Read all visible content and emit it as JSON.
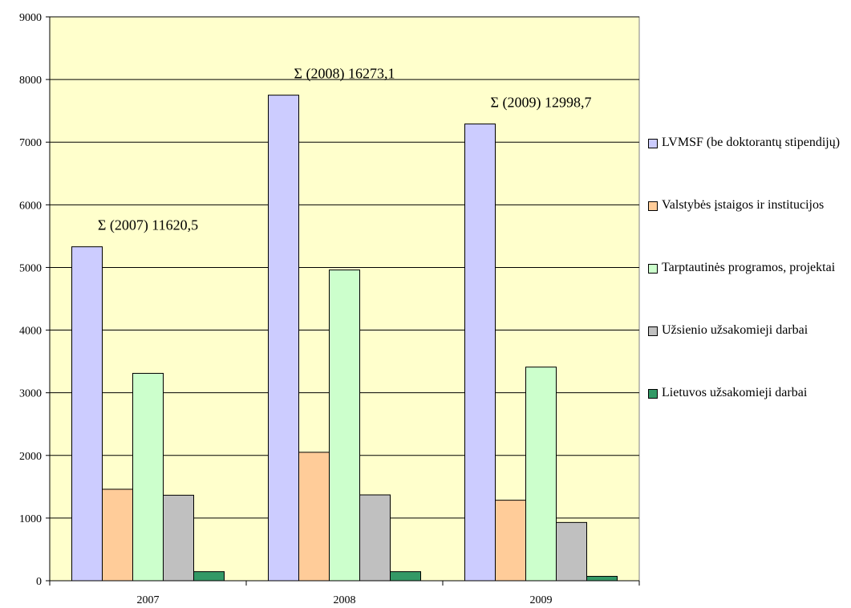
{
  "chart_data": {
    "type": "bar",
    "categories": [
      "2007",
      "2008",
      "2009"
    ],
    "series": [
      {
        "name": "LVMSF (be doktorantų stipendijų)",
        "color": "#ccccff",
        "values": [
          5330,
          7750,
          7290
        ]
      },
      {
        "name": "Valstybės įstaigos ir institucijos",
        "color": "#ffcc99",
        "values": [
          1460,
          2050,
          1285
        ]
      },
      {
        "name": "Tarptautinės programos, projektai",
        "color": "#ccffcc",
        "values": [
          3310,
          4960,
          3410
        ]
      },
      {
        "name": "Užsienio užsakomieji darbai",
        "color": "#c0c0c0",
        "values": [
          1365,
          1370,
          930
        ]
      },
      {
        "name": "Lietuvos užsakomieji darbai",
        "color": "#339966",
        "values": [
          145,
          145,
          70
        ]
      }
    ],
    "ylim": [
      0,
      9000
    ],
    "yticks": [
      "0",
      "1000",
      "2000",
      "3000",
      "4000",
      "5000",
      "6000",
      "7000",
      "8000",
      "9000"
    ],
    "grid": true,
    "legend_position": "right",
    "plot_background": "#ffffcc",
    "annotations": [
      "Σ (2007) 11620,5",
      "Σ (2008) 16273,1",
      "Σ (2009) 12998,7"
    ]
  }
}
